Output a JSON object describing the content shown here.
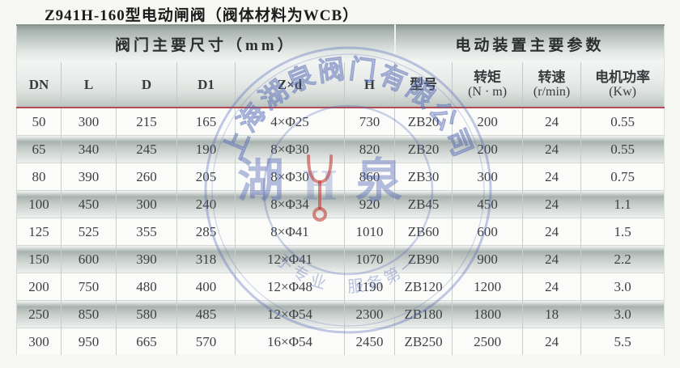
{
  "page": {
    "title": "Z941H-160型电动闸阀（阀体材料为WCB）"
  },
  "table": {
    "sections": [
      {
        "label": "阀门主要尺寸（mm）",
        "span": 6
      },
      {
        "label": "电动装置主要参数",
        "span": 4
      }
    ],
    "columns": [
      {
        "label": "DN",
        "sub": ""
      },
      {
        "label": "L",
        "sub": ""
      },
      {
        "label": "D",
        "sub": ""
      },
      {
        "label": "D1",
        "sub": ""
      },
      {
        "label": "Z×d",
        "sub": ""
      },
      {
        "label": "H",
        "sub": ""
      },
      {
        "label": "型号",
        "sub": ""
      },
      {
        "label": "转矩",
        "sub": "(N · m)"
      },
      {
        "label": "转速",
        "sub": "(r/min)"
      },
      {
        "label": "电机功率",
        "sub": "(Kw)"
      }
    ],
    "rows": [
      [
        "50",
        "300",
        "215",
        "165",
        "4×Φ25",
        "730",
        "ZB20",
        "200",
        "24",
        "0.55"
      ],
      [
        "65",
        "340",
        "245",
        "190",
        "8×Φ30",
        "820",
        "ZB20",
        "200",
        "24",
        "0.55"
      ],
      [
        "80",
        "390",
        "260",
        "205",
        "8×Φ30",
        "860",
        "ZB30",
        "300",
        "24",
        "0.75"
      ],
      [
        "100",
        "450",
        "300",
        "240",
        "8×Φ34",
        "920",
        "ZB45",
        "450",
        "24",
        "1.1"
      ],
      [
        "125",
        "525",
        "355",
        "285",
        "8×Φ41",
        "1010",
        "ZB60",
        "600",
        "24",
        "1.5"
      ],
      [
        "150",
        "600",
        "390",
        "318",
        "12×Φ41",
        "1070",
        "ZB90",
        "900",
        "24",
        "2.2"
      ],
      [
        "200",
        "750",
        "480",
        "400",
        "12×Φ48",
        "1190",
        "ZB120",
        "1200",
        "24",
        "3.0"
      ],
      [
        "250",
        "850",
        "580",
        "485",
        "12×Φ54",
        "2300",
        "ZB180",
        "1800",
        "18",
        "3.0"
      ],
      [
        "300",
        "950",
        "665",
        "570",
        "16×Φ54",
        "2450",
        "ZB250",
        "2500",
        "24",
        "5.5"
      ]
    ]
  },
  "watermark": {
    "company_arc_text": "上海湖泉阀门有限公司",
    "center_left_char": "湖",
    "center_right_char": "泉",
    "slogan_arc_text": "于专业　服务第一"
  },
  "colors": {
    "header_rule_red": "#b54a52",
    "watermark_blue": "#5a6eb9",
    "watermark_red": "#c0392b",
    "paper": "#f6f7f3"
  }
}
